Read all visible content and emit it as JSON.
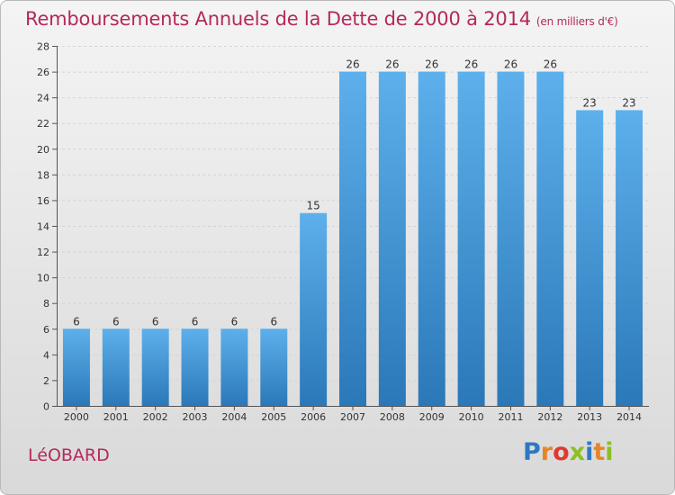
{
  "header": {
    "title": "Remboursements Annuels de la Dette de 2000 à 2014",
    "unit": "(en milliers d'€)"
  },
  "footer": {
    "commune": "LéOBARD",
    "brand": "Proxiti"
  },
  "colors": {
    "accent": "#b4295c",
    "bar_light": "#5db0ec",
    "bar_dark": "#2b78b8"
  },
  "chart_data": {
    "type": "bar",
    "title": "Remboursements Annuels de la Dette de 2000 à 2014",
    "ylabel": "en milliers d'€",
    "xlabel": "",
    "categories": [
      "2000",
      "2001",
      "2002",
      "2003",
      "2004",
      "2005",
      "2006",
      "2007",
      "2008",
      "2009",
      "2010",
      "2011",
      "2012",
      "2013",
      "2014"
    ],
    "values": [
      6,
      6,
      6,
      6,
      6,
      6,
      15,
      26,
      26,
      26,
      26,
      26,
      26,
      23,
      23
    ],
    "ylim": [
      0,
      28
    ],
    "yticks": [
      0,
      2,
      4,
      6,
      8,
      10,
      12,
      14,
      16,
      18,
      20,
      22,
      24,
      26,
      28
    ],
    "grid": true
  }
}
